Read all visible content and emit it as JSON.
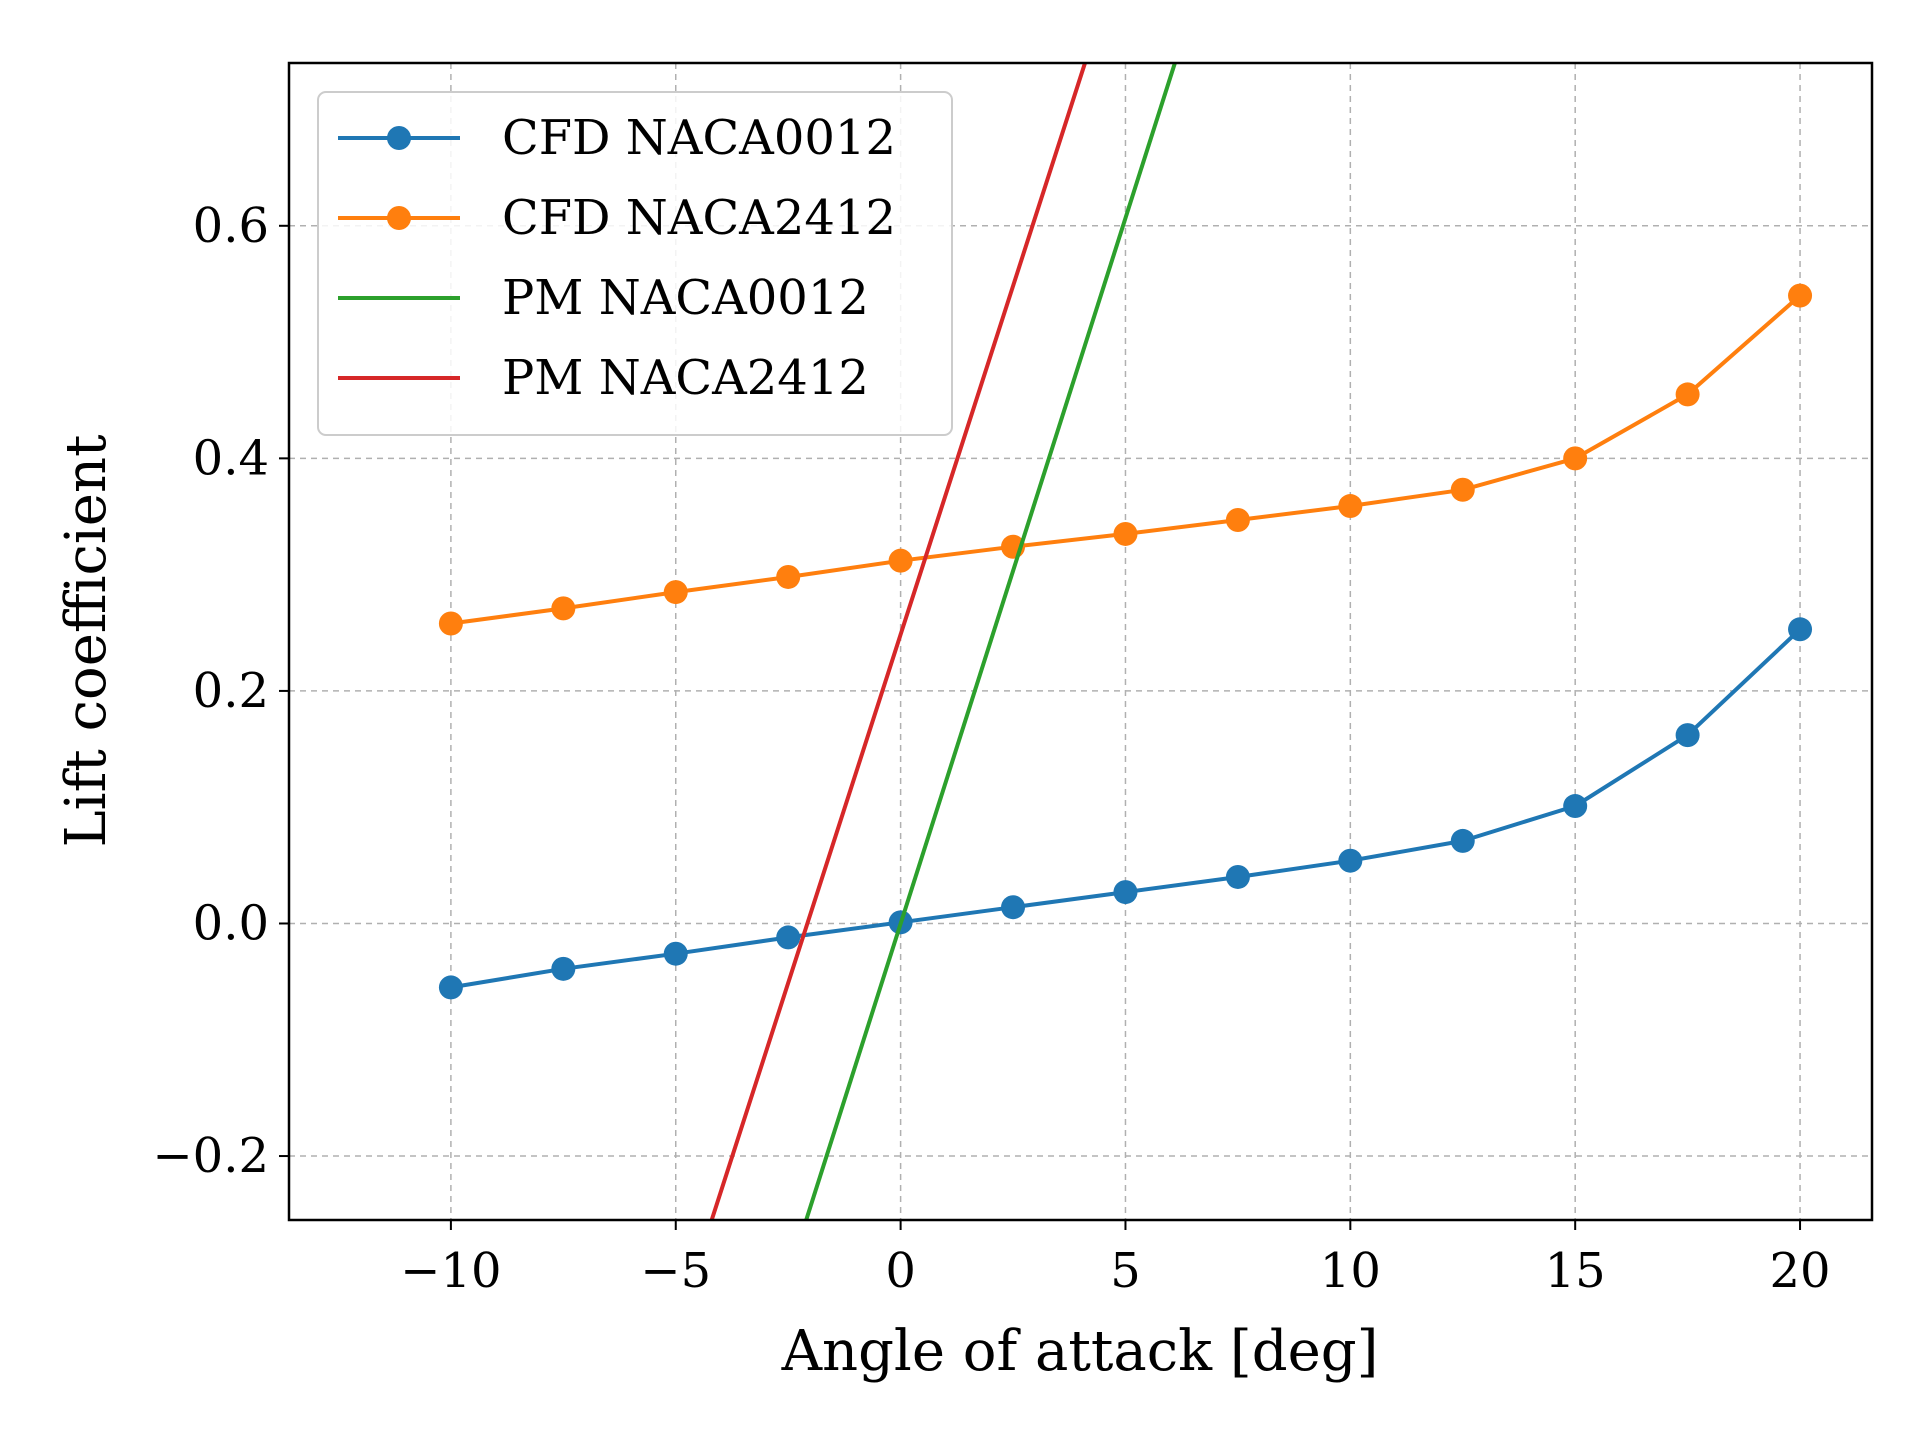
{
  "chart_data": {
    "type": "line",
    "title": "",
    "xlabel": "Angle of attack [deg]",
    "ylabel": "Lift coefficient",
    "xlim": [
      -13.6,
      21.6
    ],
    "ylim": [
      -0.255,
      0.74
    ],
    "xticks": [
      -10,
      -5,
      0,
      5,
      10,
      15,
      20
    ],
    "xtick_labels": [
      "−10",
      "−5",
      "0",
      "5",
      "10",
      "15",
      "20"
    ],
    "yticks": [
      -0.2,
      0.0,
      0.2,
      0.4,
      0.6
    ],
    "ytick_labels": [
      "−0.2",
      "0.0",
      "0.2",
      "0.4",
      "0.6"
    ],
    "grid": true,
    "legend_position": "upper-left",
    "series": [
      {
        "name": "CFD NACA0012",
        "color": "#1f77b4",
        "markers": true,
        "x": [
          -10,
          -7.5,
          -5,
          -2.5,
          0,
          2.5,
          5,
          7.5,
          10,
          12.5,
          15,
          17.5,
          20
        ],
        "y": [
          -0.055,
          -0.039,
          -0.026,
          -0.012,
          0.001,
          0.014,
          0.027,
          0.04,
          0.054,
          0.071,
          0.101,
          0.162,
          0.253
        ]
      },
      {
        "name": "CFD NACA2412",
        "color": "#ff7f0e",
        "markers": true,
        "x": [
          -10,
          -7.5,
          -5,
          -2.5,
          0,
          2.5,
          5,
          7.5,
          10,
          12.5,
          15,
          17.5,
          20
        ],
        "y": [
          0.258,
          0.271,
          0.285,
          0.298,
          0.312,
          0.324,
          0.335,
          0.347,
          0.359,
          0.373,
          0.4,
          0.455,
          0.54
        ]
      },
      {
        "name": "PM NACA0012",
        "color": "#2ca02c",
        "markers": false,
        "x": [
          -2.1,
          6.1
        ],
        "y": [
          -0.255,
          0.74
        ]
      },
      {
        "name": "PM NACA2412",
        "color": "#d62728",
        "markers": false,
        "x": [
          -4.2,
          4.1
        ],
        "y": [
          -0.255,
          0.74
        ]
      }
    ]
  }
}
